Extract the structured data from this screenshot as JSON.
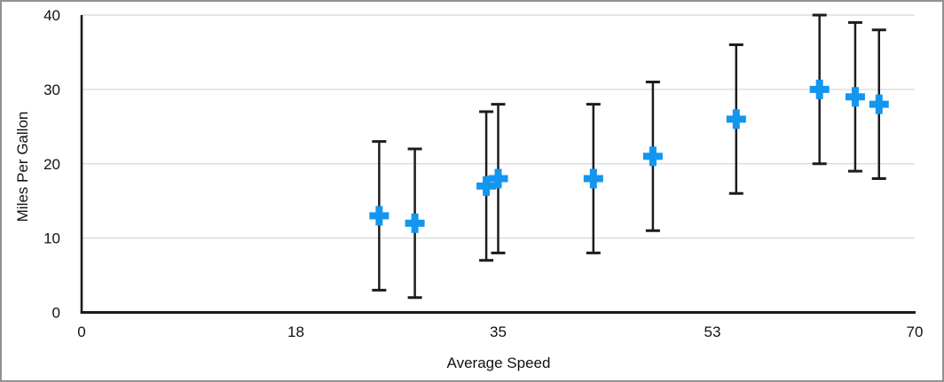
{
  "window": {
    "background": "#ffffff",
    "border_color": "#929292"
  },
  "chart_data": {
    "type": "scatter",
    "subtype": "scatter-with-y-error-bars",
    "title": "",
    "xlabel": "Average Speed",
    "ylabel": "Miles Per Gallon",
    "xlim": [
      0,
      70
    ],
    "ylim": [
      0,
      40
    ],
    "x_ticks": [
      0,
      18,
      35,
      53,
      70
    ],
    "y_ticks": [
      0,
      10,
      20,
      30,
      40
    ],
    "grid": "horizontal gridlines at y ticks",
    "legend": "none",
    "marker": "plus",
    "colors": {
      "marker": "#1296F0",
      "error_bar": "#1c1c1c",
      "axis": "#1c1c1c",
      "gridline": "#d7d7d7",
      "text": "#111111"
    },
    "points": [
      {
        "x": 25,
        "y": 13,
        "y_low": 3,
        "y_high": 23
      },
      {
        "x": 28,
        "y": 12,
        "y_low": 2,
        "y_high": 22
      },
      {
        "x": 34,
        "y": 17,
        "y_low": 7,
        "y_high": 27
      },
      {
        "x": 35,
        "y": 18,
        "y_low": 8,
        "y_high": 28
      },
      {
        "x": 43,
        "y": 18,
        "y_low": 8,
        "y_high": 28
      },
      {
        "x": 48,
        "y": 21,
        "y_low": 11,
        "y_high": 31
      },
      {
        "x": 55,
        "y": 26,
        "y_low": 16,
        "y_high": 36
      },
      {
        "x": 62,
        "y": 30,
        "y_low": 20,
        "y_high": 40
      },
      {
        "x": 65,
        "y": 29,
        "y_low": 19,
        "y_high": 39
      },
      {
        "x": 67,
        "y": 28,
        "y_low": 18,
        "y_high": 38
      }
    ]
  }
}
